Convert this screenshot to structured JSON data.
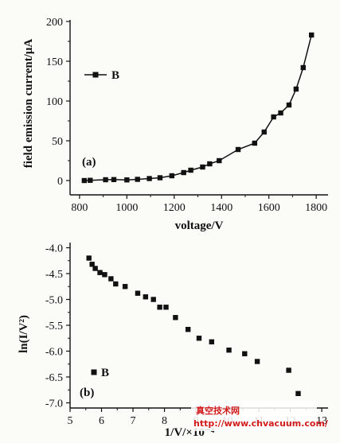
{
  "chart_data": [
    {
      "type": "line",
      "panel_label": "(a)",
      "xlabel": "voltage/V",
      "ylabel": "field emission current/μA",
      "xlim": [
        760,
        1850
      ],
      "ylim": [
        -18,
        202
      ],
      "xticks": [
        800,
        1000,
        1200,
        1400,
        1600,
        1800
      ],
      "yticks": [
        0,
        50,
        100,
        150,
        200
      ],
      "grid": false,
      "legend_position": "upper-left",
      "series": [
        {
          "name": "B",
          "marker": "square",
          "x": [
            820,
            845,
            910,
            945,
            1000,
            1045,
            1095,
            1140,
            1190,
            1240,
            1270,
            1320,
            1350,
            1390,
            1470,
            1540,
            1580,
            1620,
            1650,
            1685,
            1715,
            1745,
            1780
          ],
          "y": [
            0,
            0.3,
            1,
            1.2,
            0.8,
            1.5,
            2.5,
            3.5,
            6,
            10,
            13,
            17,
            21,
            25,
            39,
            47,
            61,
            80,
            85,
            95,
            115,
            142,
            183
          ]
        }
      ]
    },
    {
      "type": "scatter",
      "panel_label": "(b)",
      "xlabel": "1/V/×10⁻⁴",
      "ylabel": "ln(I/V²)",
      "xlim": [
        5,
        13.2
      ],
      "ylim": [
        -7.1,
        -3.9
      ],
      "xticks": [
        5,
        6,
        7,
        8,
        9,
        10,
        11,
        12,
        13
      ],
      "yticks": [
        -4.0,
        -4.5,
        -5.0,
        -5.5,
        -6.0,
        -6.5,
        -7.0
      ],
      "ytick_labels": [
        "-4.0",
        "-4.5",
        "-5.0",
        "-5.5",
        "-6.0",
        "-6.5",
        "-7.0"
      ],
      "grid": false,
      "legend_position": "lower-left",
      "series": [
        {
          "name": "B",
          "marker": "square",
          "x": [
            5.6,
            5.7,
            5.8,
            5.95,
            6.1,
            6.3,
            6.45,
            6.75,
            7.15,
            7.4,
            7.65,
            7.85,
            8.05,
            8.35,
            8.75,
            9.1,
            9.5,
            10.05,
            10.55,
            10.95,
            11.95,
            12.25
          ],
          "y": [
            -4.2,
            -4.32,
            -4.4,
            -4.48,
            -4.52,
            -4.6,
            -4.7,
            -4.75,
            -4.88,
            -4.95,
            -5.0,
            -5.15,
            -5.15,
            -5.35,
            -5.58,
            -5.75,
            -5.82,
            -5.98,
            -6.05,
            -6.2,
            -6.37,
            -6.82
          ]
        }
      ]
    }
  ],
  "watermark": {
    "line1": "真空技术网",
    "line2": "http://www.chvacuum.com/"
  }
}
